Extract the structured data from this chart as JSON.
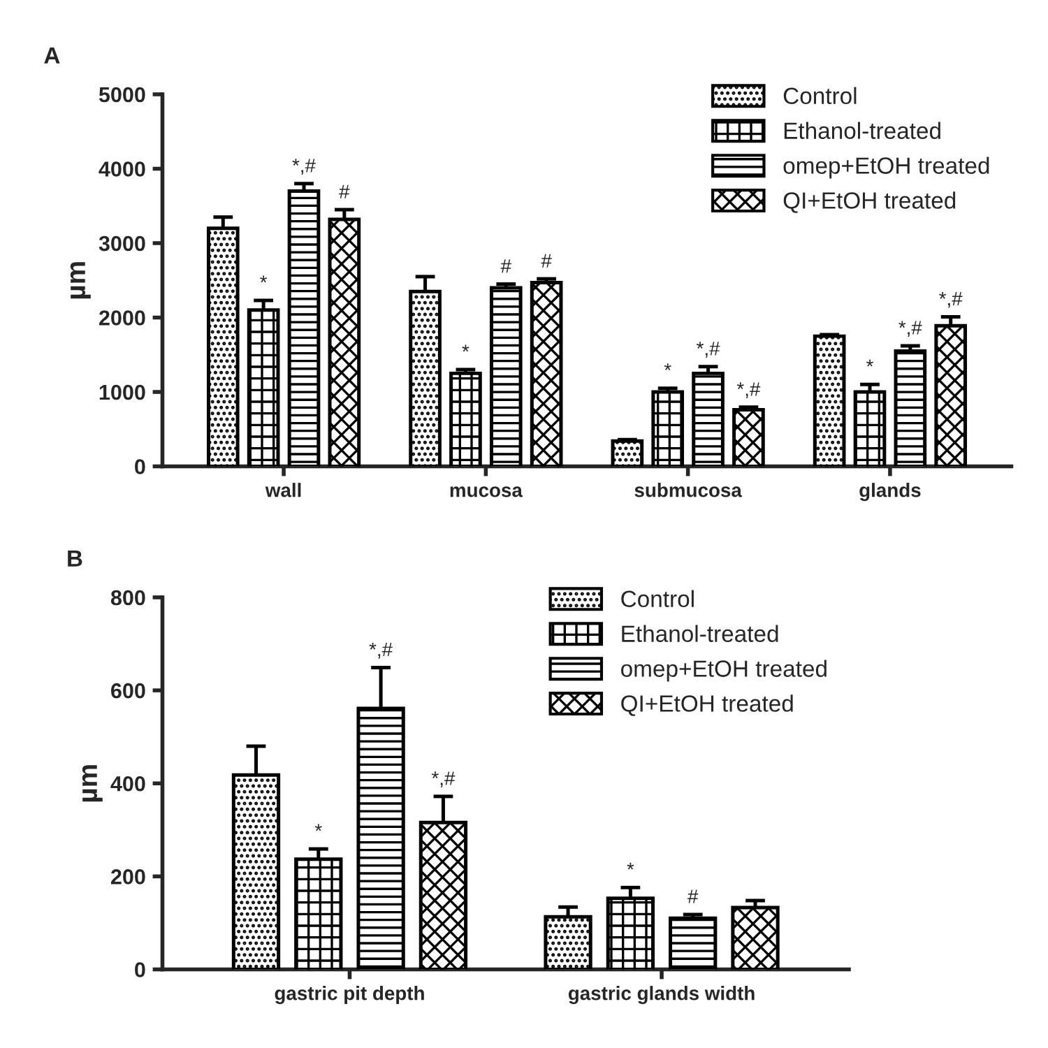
{
  "chart_data": [
    {
      "type": "bar",
      "title": "A",
      "ylabel": "µm",
      "categories": [
        "wall",
        "mucosa",
        "submucosa",
        "glands"
      ],
      "ylim": [
        0,
        5000
      ],
      "yticks": [
        0,
        1000,
        2000,
        3000,
        4000,
        5000
      ],
      "grid": false,
      "legend": "top right",
      "series": [
        {
          "name": "Control",
          "color": "#000000",
          "values": [
            3200,
            2350,
            340,
            1750
          ],
          "errors": [
            150,
            200,
            20,
            20
          ],
          "value_labels": [
            null,
            null,
            null,
            null
          ]
        },
        {
          "name": "Ethanol-treated",
          "color": "#000000",
          "values": [
            2100,
            1250,
            1000,
            1000
          ],
          "errors": [
            130,
            50,
            50,
            100
          ],
          "value_labels": [
            "*",
            "*",
            "*",
            "*"
          ]
        },
        {
          "name": "omep+EtOH treated",
          "color": "#000000",
          "values": [
            3700,
            2400,
            1250,
            1550
          ],
          "errors": [
            100,
            50,
            90,
            70
          ],
          "value_labels": [
            "*,#",
            "#",
            "*,#",
            "*,#"
          ]
        },
        {
          "name": "QI+EtOH treated",
          "color": "#000000",
          "values": [
            3320,
            2470,
            760,
            1890
          ],
          "errors": [
            130,
            50,
            35,
            120
          ],
          "value_labels": [
            "#",
            "#",
            "*,#",
            "*,#"
          ]
        }
      ]
    },
    {
      "type": "bar",
      "title": "B",
      "ylabel": "µm",
      "categories": [
        "gastric pit depth",
        "gastric glands width"
      ],
      "ylim": [
        0,
        800
      ],
      "yticks": [
        0,
        200,
        400,
        600,
        800
      ],
      "grid": false,
      "legend": "top right",
      "series": [
        {
          "name": "Control",
          "color": "#000000",
          "values": [
            418,
            113
          ],
          "errors": [
            62,
            21
          ],
          "value_labels": [
            null,
            null
          ]
        },
        {
          "name": "Ethanol-treated",
          "color": "#000000",
          "values": [
            237,
            153
          ],
          "errors": [
            22,
            23
          ],
          "value_labels": [
            "*",
            "*"
          ]
        },
        {
          "name": "omep+EtOH treated",
          "color": "#000000",
          "values": [
            561,
            110
          ],
          "errors": [
            88,
            8
          ],
          "value_labels": [
            "*,#",
            "#"
          ]
        },
        {
          "name": "QI+EtOH treated",
          "color": "#000000",
          "values": [
            316,
            133
          ],
          "errors": [
            56,
            15
          ],
          "value_labels": [
            "*,#",
            null
          ]
        }
      ]
    }
  ]
}
